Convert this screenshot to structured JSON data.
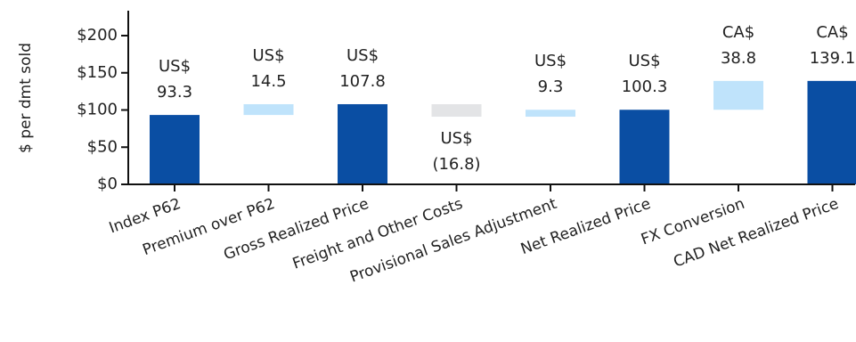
{
  "chart_data": {
    "type": "bar",
    "subtype": "waterfall",
    "title": "",
    "xlabel": "",
    "ylabel": "$ per dmt sold",
    "ylim": [
      0,
      200
    ],
    "yticks": [
      0,
      50,
      100,
      150,
      200
    ],
    "ytick_labels": [
      "$0",
      "$50",
      "$100",
      "$150",
      "$200"
    ],
    "grid": false,
    "legend": "none",
    "categories": [
      "Index P62",
      "Premium over P62",
      "Gross Realized Price",
      "Freight and Other Costs",
      "Provisional Sales Adjustment",
      "Net Realized Price",
      "FX Conversion",
      "CAD Net Realized Price"
    ],
    "bars": [
      {
        "kind": "total",
        "start": 0,
        "end": 93.3,
        "currency": "US$",
        "label": "93.3"
      },
      {
        "kind": "increase",
        "start": 93.3,
        "end": 107.8,
        "currency": "US$",
        "label": "14.5"
      },
      {
        "kind": "total",
        "start": 0,
        "end": 107.8,
        "currency": "US$",
        "label": "107.8"
      },
      {
        "kind": "decrease",
        "start": 107.8,
        "end": 91.0,
        "currency": "US$",
        "label": "(16.8)"
      },
      {
        "kind": "increase",
        "start": 91.0,
        "end": 100.3,
        "currency": "US$",
        "label": "9.3"
      },
      {
        "kind": "total",
        "start": 0,
        "end": 100.3,
        "currency": "US$",
        "label": "100.3"
      },
      {
        "kind": "increase",
        "start": 100.3,
        "end": 139.1,
        "currency": "CA$",
        "label": "38.8"
      },
      {
        "kind": "total",
        "start": 0,
        "end": 139.1,
        "currency": "CA$",
        "label": "139.1"
      }
    ],
    "colors": {
      "total": "#0a4ea3",
      "increase": "#bfe3fb",
      "decrease": "#e3e4e6",
      "axis": "#111111"
    }
  }
}
